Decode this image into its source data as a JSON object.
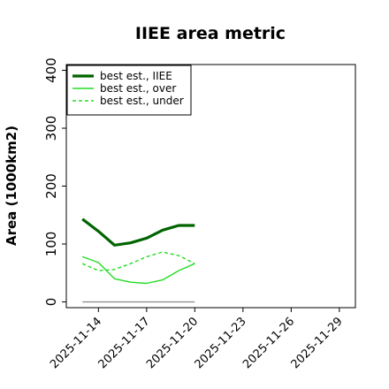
{
  "chart_data": {
    "type": "line",
    "title": "IIEE area metric",
    "xlabel": "",
    "ylabel": "Area (1000km2)",
    "xlim": [
      "2025-11-12",
      "2025-11-30"
    ],
    "ylim": [
      -10,
      410
    ],
    "x_ticks": [
      "2025-11-14",
      "2025-11-17",
      "2025-11-20",
      "2025-11-23",
      "2025-11-26",
      "2025-11-29"
    ],
    "y_ticks": [
      0,
      100,
      200,
      300,
      400
    ],
    "legend_position": "top-left",
    "grid": false,
    "series": [
      {
        "name": "best est., IIEE",
        "color": "#006400",
        "style": "solid-thick",
        "x": [
          "2025-11-13",
          "2025-11-14",
          "2025-11-15",
          "2025-11-16",
          "2025-11-17",
          "2025-11-18",
          "2025-11-19",
          "2025-11-20"
        ],
        "values": [
          143,
          122,
          98,
          102,
          110,
          124,
          132,
          132
        ]
      },
      {
        "name": "best est., over",
        "color": "#22dd22",
        "style": "solid",
        "x": [
          "2025-11-13",
          "2025-11-14",
          "2025-11-15",
          "2025-11-16",
          "2025-11-17",
          "2025-11-18",
          "2025-11-19",
          "2025-11-20"
        ],
        "values": [
          78,
          68,
          40,
          34,
          32,
          38,
          54,
          66
        ]
      },
      {
        "name": "best est., under",
        "color": "#22dd22",
        "style": "dashed",
        "x": [
          "2025-11-13",
          "2025-11-14",
          "2025-11-15",
          "2025-11-16",
          "2025-11-17",
          "2025-11-18",
          "2025-11-19",
          "2025-11-20"
        ],
        "values": [
          66,
          54,
          56,
          66,
          78,
          86,
          80,
          66
        ]
      },
      {
        "name": "",
        "color": "#888888",
        "style": "solid-thin",
        "x": [
          "2025-11-13",
          "2025-11-20"
        ],
        "values": [
          0,
          0
        ]
      }
    ]
  }
}
